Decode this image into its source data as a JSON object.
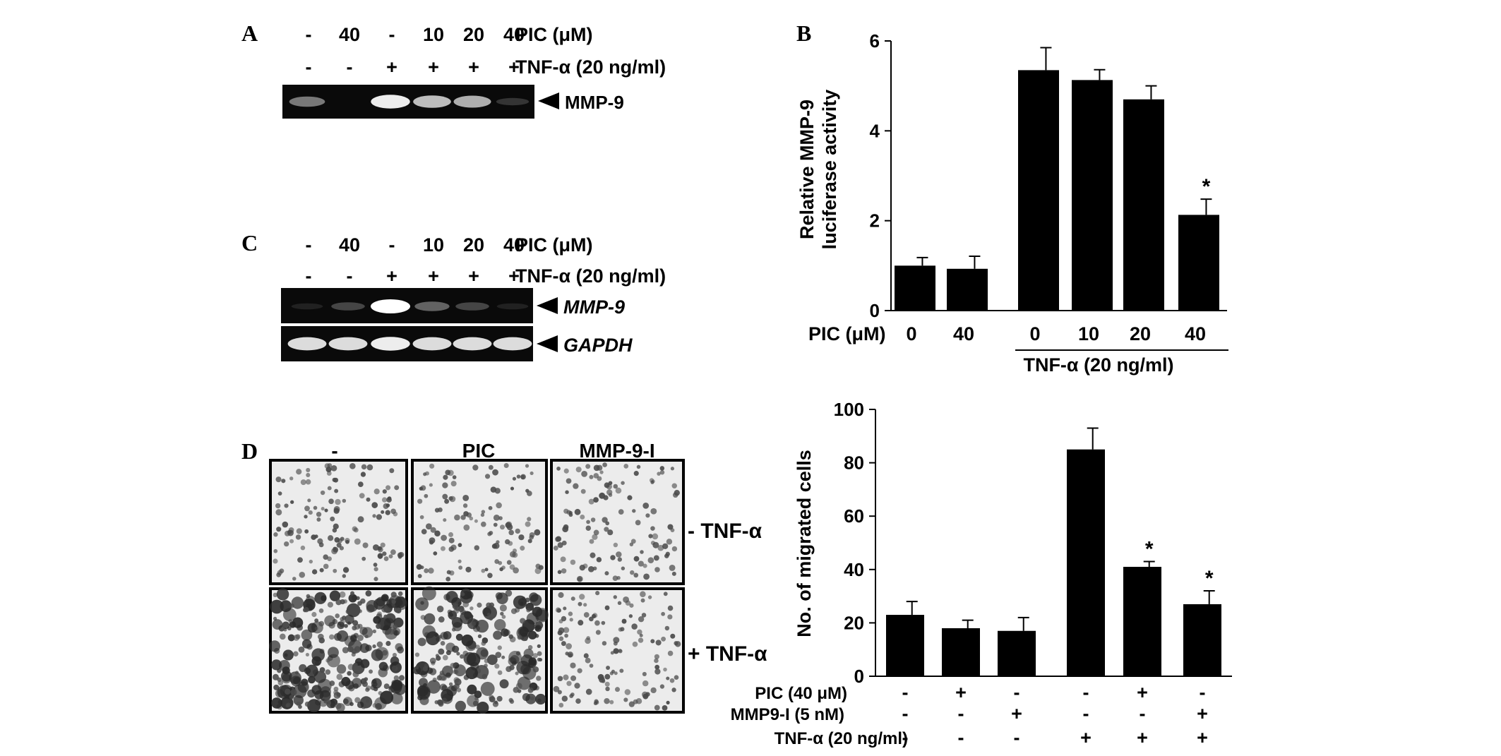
{
  "panels": {
    "A": {
      "letter": "A",
      "lanes_pic": [
        "-",
        "40",
        "-",
        "10",
        "20",
        "40"
      ],
      "lanes_tnf": [
        "-",
        "-",
        "+",
        "+",
        "+",
        "+"
      ],
      "pic_label": "PIC (μM)",
      "tnf_label": "TNF-α (20 ng/ml)",
      "band_label": "MMP-9",
      "band_intensity": [
        0.55,
        0.0,
        0.95,
        0.8,
        0.75,
        0.2
      ]
    },
    "C": {
      "letter": "C",
      "lanes_pic": [
        "-",
        "40",
        "-",
        "10",
        "20",
        "40"
      ],
      "lanes_tnf": [
        "-",
        "-",
        "+",
        "+",
        "+",
        "+"
      ],
      "pic_label": "PIC (μM)",
      "tnf_label": "TNF-α (20 ng/ml)",
      "band1_label": "MMP-9",
      "band1_intensity": [
        0.05,
        0.3,
        1.0,
        0.45,
        0.3,
        0.05
      ],
      "band2_label": "GAPDH",
      "band2_intensity": [
        0.9,
        0.9,
        0.95,
        0.9,
        0.9,
        0.9
      ]
    },
    "D": {
      "letter": "D",
      "col_labels": [
        "-",
        "PIC",
        "MMP-9-I"
      ],
      "row_labels": [
        "- TNF-α",
        "+ TNF-α"
      ],
      "density": [
        [
          0.35,
          0.3,
          0.3
        ],
        [
          0.95,
          0.75,
          0.35
        ]
      ]
    }
  },
  "chart_data": [
    {
      "type": "bar",
      "panel_letter": "B",
      "title": "",
      "ylabel_line1": "Relative MMP-9",
      "ylabel_line2": "luciferase activity",
      "ylim": [
        0,
        6
      ],
      "yticks": [
        "0",
        "2",
        "4",
        "6"
      ],
      "row_label": "PIC (μM)",
      "categories": [
        "0",
        "40",
        "0",
        "10",
        "20",
        "40"
      ],
      "values": [
        1.0,
        0.93,
        5.35,
        5.13,
        4.7,
        2.13
      ],
      "errors": [
        0.18,
        0.28,
        0.5,
        0.23,
        0.3,
        0.35
      ],
      "significant": [
        "",
        "",
        "",
        "",
        "",
        "*"
      ],
      "group_label": "TNF-α (20 ng/ml)",
      "bar_color": "#000000"
    },
    {
      "type": "bar",
      "title": "",
      "ylabel": "No. of migrated cells",
      "ylim": [
        0,
        100
      ],
      "yticks": [
        "0",
        "20",
        "40",
        "60",
        "80",
        "100"
      ],
      "values": [
        23,
        18,
        17,
        85,
        41,
        27
      ],
      "errors": [
        5,
        3,
        5,
        8,
        2,
        5
      ],
      "significant": [
        "",
        "",
        "",
        "",
        "*",
        "*"
      ],
      "condition_rows": [
        {
          "label": "PIC (40 μM)",
          "signs": [
            "-",
            "+",
            "-",
            "-",
            "+",
            "-"
          ]
        },
        {
          "label": "MMP9-I (5 nM)",
          "signs": [
            "-",
            "-",
            "+",
            "-",
            "-",
            "+"
          ]
        },
        {
          "label": "TNF-α (20 ng/ml)",
          "signs": [
            "-",
            "-",
            "-",
            "+",
            "+",
            "+"
          ]
        }
      ],
      "bar_color": "#000000"
    }
  ]
}
